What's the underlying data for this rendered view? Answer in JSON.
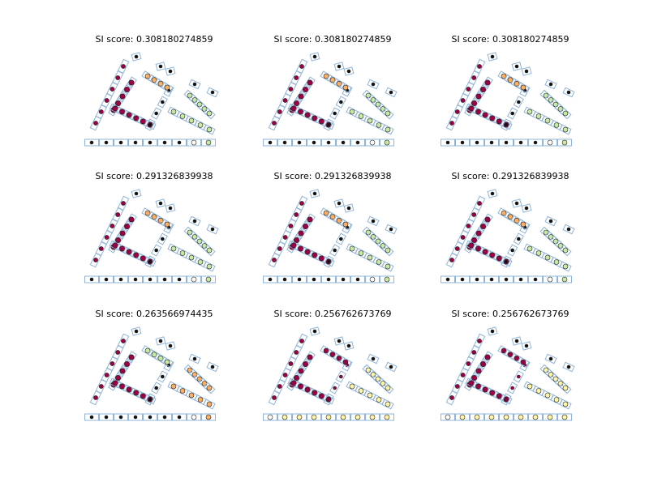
{
  "figure": {
    "colors": {
      "box_stroke": "#8fb4d8",
      "cluster_black": "#111111",
      "cluster_crimson": "#9e0142",
      "cluster_orange": "#fdae61",
      "cluster_lightgreen": "#c7e9a0",
      "cluster_paleyellow": "#fff7a6",
      "cluster_white": "#ffffff"
    },
    "panels": [
      {
        "title": "SI score: 0.308180274859",
        "scheme": "A"
      },
      {
        "title": "SI score: 0.308180274859",
        "scheme": "A"
      },
      {
        "title": "SI score: 0.308180274859",
        "scheme": "A"
      },
      {
        "title": "SI score: 0.291326839938",
        "scheme": "A"
      },
      {
        "title": "SI score: 0.291326839938",
        "scheme": "A"
      },
      {
        "title": "SI score: 0.291326839938",
        "scheme": "A"
      },
      {
        "title": "SI score: 0.263566974435",
        "scheme": "B"
      },
      {
        "title": "SI score: 0.256762673769",
        "scheme": "C"
      },
      {
        "title": "SI score: 0.256762673769",
        "scheme": "C"
      }
    ]
  }
}
